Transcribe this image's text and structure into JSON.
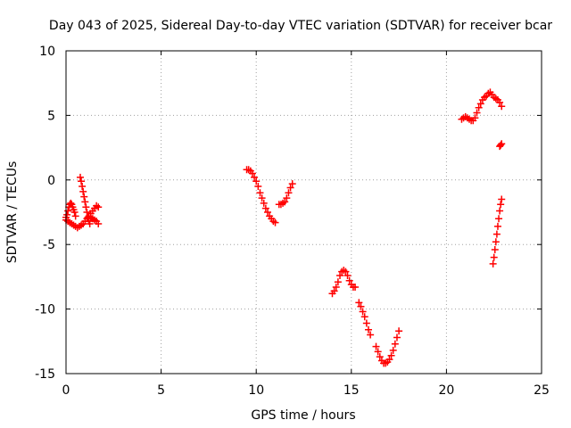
{
  "chart_data": {
    "type": "scatter",
    "title": "Day 043 of 2025, Sidereal Day-to-day VTEC variation (SDTVAR) for receiver bcar",
    "xlabel": "GPS time / hours",
    "ylabel": "SDTVAR / TECUs",
    "xlim": [
      0,
      25
    ],
    "ylim": [
      -15,
      10
    ],
    "xticks": [
      "0",
      "5",
      "10",
      "15",
      "20",
      "25"
    ],
    "yticks": [
      "10",
      "5",
      "0",
      "-5",
      "-10",
      "-15"
    ],
    "grid": true,
    "marker": "+",
    "color": "#ff0000",
    "series": [
      {
        "points": [
          [
            0.0,
            -2.9
          ],
          [
            0.05,
            -2.7
          ],
          [
            0.1,
            -2.4
          ],
          [
            0.15,
            -2.1
          ],
          [
            0.2,
            -1.9
          ],
          [
            0.25,
            -1.8
          ],
          [
            0.3,
            -1.9
          ],
          [
            0.35,
            -2.1
          ],
          [
            0.4,
            -2.3
          ],
          [
            0.45,
            -2.5
          ],
          [
            0.5,
            -2.8
          ],
          [
            0.0,
            -3.1
          ],
          [
            0.1,
            -3.2
          ],
          [
            0.2,
            -3.3
          ],
          [
            0.3,
            -3.4
          ],
          [
            0.4,
            -3.5
          ],
          [
            0.5,
            -3.6
          ],
          [
            0.6,
            -3.7
          ],
          [
            0.7,
            -3.6
          ],
          [
            0.8,
            -3.5
          ],
          [
            0.9,
            -3.4
          ],
          [
            0.75,
            0.2
          ],
          [
            0.8,
            -0.1
          ],
          [
            0.85,
            -0.5
          ],
          [
            0.9,
            -0.9
          ],
          [
            0.95,
            -1.3
          ],
          [
            1.0,
            -1.7
          ],
          [
            1.05,
            -2.1
          ],
          [
            1.1,
            -2.5
          ],
          [
            1.15,
            -2.9
          ],
          [
            1.2,
            -3.2
          ],
          [
            1.25,
            -3.4
          ],
          [
            1.0,
            -3.2
          ],
          [
            1.1,
            -3.0
          ],
          [
            1.2,
            -2.8
          ],
          [
            1.3,
            -2.6
          ],
          [
            1.4,
            -2.4
          ],
          [
            1.5,
            -2.2
          ],
          [
            1.6,
            -2.0
          ],
          [
            1.7,
            -2.1
          ],
          [
            1.2,
            -3.0
          ],
          [
            1.3,
            -2.9
          ],
          [
            1.4,
            -3.0
          ],
          [
            1.5,
            -3.1
          ],
          [
            1.6,
            -3.2
          ],
          [
            1.7,
            -3.4
          ]
        ]
      },
      {
        "points": [
          [
            9.5,
            0.8
          ],
          [
            9.6,
            0.8
          ],
          [
            9.7,
            0.7
          ],
          [
            9.8,
            0.5
          ],
          [
            9.9,
            0.2
          ],
          [
            10.0,
            -0.1
          ],
          [
            10.1,
            -0.5
          ],
          [
            10.2,
            -1.0
          ],
          [
            10.3,
            -1.4
          ],
          [
            10.4,
            -1.8
          ],
          [
            10.5,
            -2.2
          ],
          [
            10.6,
            -2.5
          ],
          [
            10.7,
            -2.8
          ],
          [
            10.8,
            -3.0
          ],
          [
            10.9,
            -3.2
          ],
          [
            11.0,
            -3.3
          ],
          [
            11.2,
            -1.9
          ],
          [
            11.3,
            -1.9
          ],
          [
            11.4,
            -1.8
          ],
          [
            11.5,
            -1.7
          ],
          [
            11.6,
            -1.4
          ],
          [
            11.7,
            -1.0
          ],
          [
            11.8,
            -0.6
          ],
          [
            11.9,
            -0.3
          ]
        ]
      },
      {
        "points": [
          [
            14.0,
            -8.8
          ],
          [
            14.1,
            -8.6
          ],
          [
            14.2,
            -8.3
          ],
          [
            14.3,
            -7.9
          ],
          [
            14.4,
            -7.4
          ],
          [
            14.5,
            -7.1
          ],
          [
            14.6,
            -7.0
          ],
          [
            14.7,
            -7.1
          ],
          [
            14.8,
            -7.4
          ],
          [
            14.9,
            -7.8
          ],
          [
            15.0,
            -8.1
          ],
          [
            15.1,
            -8.3
          ],
          [
            15.2,
            -8.3
          ],
          [
            15.4,
            -9.5
          ],
          [
            15.5,
            -9.8
          ],
          [
            15.6,
            -10.2
          ],
          [
            15.7,
            -10.6
          ],
          [
            15.8,
            -11.1
          ],
          [
            15.9,
            -11.6
          ],
          [
            16.0,
            -12.0
          ],
          [
            16.3,
            -12.9
          ],
          [
            16.4,
            -13.3
          ],
          [
            16.5,
            -13.7
          ],
          [
            16.6,
            -14.0
          ],
          [
            16.7,
            -14.2
          ],
          [
            16.8,
            -14.2
          ],
          [
            16.9,
            -14.1
          ],
          [
            17.0,
            -13.9
          ],
          [
            17.1,
            -13.6
          ],
          [
            17.2,
            -13.2
          ],
          [
            17.3,
            -12.7
          ],
          [
            17.4,
            -12.2
          ],
          [
            17.5,
            -11.7
          ]
        ]
      },
      {
        "points": [
          [
            20.8,
            4.7
          ],
          [
            20.9,
            4.8
          ],
          [
            21.0,
            4.9
          ],
          [
            21.1,
            4.8
          ],
          [
            21.2,
            4.7
          ],
          [
            21.3,
            4.6
          ],
          [
            21.4,
            4.6
          ],
          [
            21.5,
            4.8
          ],
          [
            21.6,
            5.2
          ],
          [
            21.7,
            5.6
          ],
          [
            21.8,
            5.9
          ],
          [
            21.9,
            6.2
          ],
          [
            22.0,
            6.4
          ],
          [
            22.1,
            6.5
          ],
          [
            22.2,
            6.7
          ],
          [
            22.3,
            6.8
          ],
          [
            22.4,
            6.6
          ],
          [
            22.5,
            6.4
          ],
          [
            22.6,
            6.3
          ],
          [
            22.7,
            6.2
          ],
          [
            22.8,
            6.0
          ],
          [
            22.9,
            5.7
          ],
          [
            22.8,
            2.6
          ],
          [
            22.85,
            2.7
          ],
          [
            22.9,
            2.8
          ],
          [
            22.45,
            -6.5
          ],
          [
            22.5,
            -6.0
          ],
          [
            22.55,
            -5.4
          ],
          [
            22.6,
            -4.8
          ],
          [
            22.65,
            -4.2
          ],
          [
            22.7,
            -3.6
          ],
          [
            22.75,
            -3.0
          ],
          [
            22.8,
            -2.4
          ],
          [
            22.85,
            -1.9
          ],
          [
            22.9,
            -1.5
          ]
        ]
      }
    ]
  }
}
